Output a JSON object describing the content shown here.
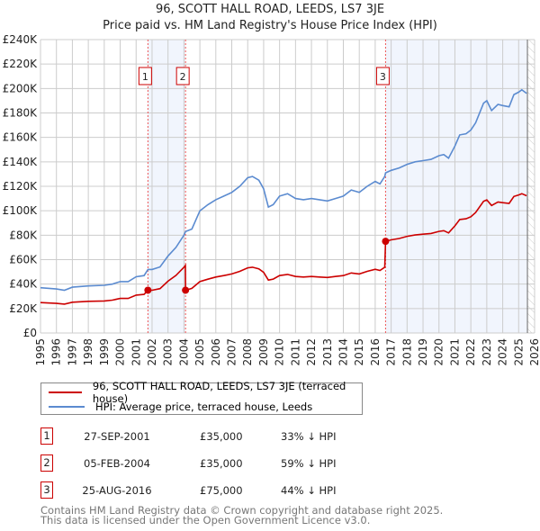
{
  "title_line1": "96, SCOTT HALL ROAD, LEEDS, LS7 3JE",
  "title_line2": "Price paid vs. HM Land Registry's House Price Index (HPI)",
  "legend": [
    {
      "label": "96, SCOTT HALL ROAD, LEEDS, LS7 3JE (terraced house)",
      "color": "#cc0000"
    },
    {
      "label": "HPI: Average price, terraced house, Leeds",
      "color": "#5b8bd0"
    }
  ],
  "sales": [
    {
      "num": "1",
      "date": "27-SEP-2001",
      "price": "£35,000",
      "hpi": "33% ↓ HPI",
      "x": 2001.74,
      "y": 35
    },
    {
      "num": "2",
      "date": "05-FEB-2004",
      "price": "£35,000",
      "hpi": "59% ↓ HPI",
      "x": 2004.1,
      "y": 35
    },
    {
      "num": "3",
      "date": "25-AUG-2016",
      "price": "£75,000",
      "hpi": "44% ↓ HPI",
      "x": 2016.65,
      "y": 75
    }
  ],
  "footer": [
    "Contains HM Land Registry data © Crown copyright and database right 2025.",
    "This data is licensed under the Open Government Licence v3.0."
  ],
  "chart_data": {
    "type": "line",
    "title": "96, SCOTT HALL ROAD, LEEDS, LS7 3JE — Price paid vs. HM Land Registry's House Price Index (HPI)",
    "xlim": [
      1995,
      2026
    ],
    "ylim": [
      0,
      240
    ],
    "yticks": [
      "£0",
      "£20K",
      "£40K",
      "£60K",
      "£80K",
      "£100K",
      "£120K",
      "£140K",
      "£160K",
      "£180K",
      "£200K",
      "£220K",
      "£240K"
    ],
    "xticks": [
      "1995",
      "1996",
      "1997",
      "1998",
      "1999",
      "2000",
      "2001",
      "2002",
      "2003",
      "2004",
      "2005",
      "2006",
      "2007",
      "2008",
      "2009",
      "2010",
      "2011",
      "2012",
      "2013",
      "2014",
      "2015",
      "2016",
      "2017",
      "2018",
      "2019",
      "2020",
      "2021",
      "2022",
      "2023",
      "2024",
      "2025",
      "2026"
    ],
    "grid": true,
    "data_end": 2025.55,
    "series": [
      {
        "name": "HPI: Average price, terraced house, Leeds",
        "color": "#5b8bd0",
        "x": [
          1995,
          1996,
          1996.5,
          1997,
          1998,
          1999,
          1999.5,
          2000,
          2000.5,
          2001,
          2001.5,
          2001.74,
          2002,
          2002.5,
          2003,
          2003.5,
          2004,
          2004.1,
          2004.5,
          2005,
          2005.5,
          2006,
          2006.5,
          2007,
          2007.5,
          2008,
          2008.3,
          2008.7,
          2009,
          2009.3,
          2009.6,
          2010,
          2010.5,
          2011,
          2011.5,
          2012,
          2012.5,
          2013,
          2013.5,
          2014,
          2014.5,
          2015,
          2015.5,
          2016,
          2016.3,
          2016.6,
          2016.65,
          2017,
          2017.5,
          2018,
          2018.5,
          2019,
          2019.5,
          2020,
          2020.3,
          2020.6,
          2021,
          2021.3,
          2021.7,
          2022,
          2022.3,
          2022.8,
          2023,
          2023.3,
          2023.7,
          2024,
          2024.4,
          2024.7,
          2025,
          2025.2,
          2025.5
        ],
        "values": [
          37,
          36,
          35,
          37.5,
          38.5,
          39,
          40,
          42,
          42,
          46,
          47,
          52,
          52,
          54,
          63,
          70,
          80,
          83,
          85,
          100,
          105,
          109,
          112,
          115,
          120,
          127,
          128,
          125,
          118,
          103,
          105,
          112,
          114,
          110,
          109,
          110,
          109,
          108,
          110,
          112,
          117,
          115,
          120,
          124,
          122,
          128,
          131,
          133,
          135,
          138,
          140,
          141,
          142,
          145,
          146,
          143,
          153,
          162,
          163,
          166,
          172,
          188,
          190,
          182,
          187,
          186,
          185,
          195,
          197,
          199,
          196
        ]
      },
      {
        "name": "96, SCOTT HALL ROAD, LEEDS, LS7 3JE (terraced house)",
        "color": "#cc0000",
        "x": [
          1995,
          1996,
          1996.5,
          1997,
          1998,
          1999,
          1999.5,
          2000,
          2000.5,
          2001,
          2001.5,
          2001.74,
          2002,
          2002.5,
          2003,
          2003.5,
          2004,
          2004.09,
          2004.1,
          2004.5,
          2005,
          2005.5,
          2006,
          2006.5,
          2007,
          2007.5,
          2008,
          2008.3,
          2008.7,
          2009,
          2009.3,
          2009.6,
          2010,
          2010.5,
          2011,
          2011.5,
          2012,
          2012.5,
          2013,
          2013.5,
          2014,
          2014.5,
          2015,
          2015.5,
          2016,
          2016.3,
          2016.6,
          2016.65,
          2017,
          2017.5,
          2018,
          2018.5,
          2019,
          2019.5,
          2020,
          2020.3,
          2020.6,
          2021,
          2021.3,
          2021.7,
          2022,
          2022.3,
          2022.8,
          2023,
          2023.3,
          2023.7,
          2024,
          2024.4,
          2024.7,
          2025,
          2025.2,
          2025.5
        ],
        "values": [
          24.9,
          24.2,
          23.6,
          25.2,
          25.9,
          26.2,
          26.9,
          28.3,
          28.3,
          31,
          31.6,
          35,
          35,
          36.3,
          42.4,
          47.1,
          53.8,
          55.2,
          35,
          36.5,
          42,
          44,
          45.8,
          47,
          48.3,
          50.4,
          53.3,
          53.8,
          52.5,
          49.6,
          43.3,
          44.1,
          47,
          47.9,
          46.2,
          45.8,
          46.2,
          45.8,
          45.4,
          46.2,
          47,
          49.1,
          48.3,
          50.4,
          52.1,
          51.2,
          53.8,
          75,
          76.2,
          77.3,
          79.1,
          80.2,
          80.8,
          81.4,
          83.1,
          83.7,
          81.9,
          87.7,
          92.8,
          93.4,
          95.1,
          98.6,
          107.7,
          108.9,
          104.3,
          107.2,
          106.6,
          106,
          111.7,
          112.9,
          114,
          112.3
        ]
      }
    ],
    "shaded_ranges": [
      [
        2001.74,
        2004.1
      ],
      [
        2016.65,
        2025.55
      ]
    ],
    "legend_position": "below"
  }
}
